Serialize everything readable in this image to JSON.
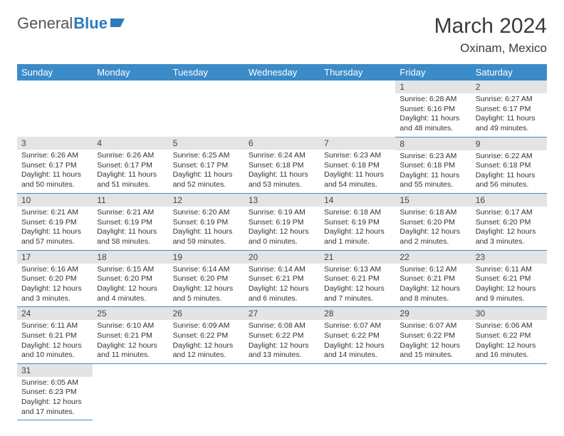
{
  "logo": {
    "text1": "General",
    "text2": "Blue"
  },
  "title": "March 2024",
  "location": "Oxinam, Mexico",
  "colors": {
    "header_bg": "#3b8bc9",
    "header_text": "#ffffff",
    "daynum_bg": "#e4e4e4",
    "border": "#3b8bc9",
    "logo_blue": "#2b7bbf"
  },
  "weekdays": [
    "Sunday",
    "Monday",
    "Tuesday",
    "Wednesday",
    "Thursday",
    "Friday",
    "Saturday"
  ],
  "weeks": [
    [
      null,
      null,
      null,
      null,
      null,
      {
        "n": "1",
        "sunrise": "6:28 AM",
        "sunset": "6:16 PM",
        "daylight": "11 hours and 48 minutes."
      },
      {
        "n": "2",
        "sunrise": "6:27 AM",
        "sunset": "6:17 PM",
        "daylight": "11 hours and 49 minutes."
      }
    ],
    [
      {
        "n": "3",
        "sunrise": "6:26 AM",
        "sunset": "6:17 PM",
        "daylight": "11 hours and 50 minutes."
      },
      {
        "n": "4",
        "sunrise": "6:26 AM",
        "sunset": "6:17 PM",
        "daylight": "11 hours and 51 minutes."
      },
      {
        "n": "5",
        "sunrise": "6:25 AM",
        "sunset": "6:17 PM",
        "daylight": "11 hours and 52 minutes."
      },
      {
        "n": "6",
        "sunrise": "6:24 AM",
        "sunset": "6:18 PM",
        "daylight": "11 hours and 53 minutes."
      },
      {
        "n": "7",
        "sunrise": "6:23 AM",
        "sunset": "6:18 PM",
        "daylight": "11 hours and 54 minutes."
      },
      {
        "n": "8",
        "sunrise": "6:23 AM",
        "sunset": "6:18 PM",
        "daylight": "11 hours and 55 minutes."
      },
      {
        "n": "9",
        "sunrise": "6:22 AM",
        "sunset": "6:18 PM",
        "daylight": "11 hours and 56 minutes."
      }
    ],
    [
      {
        "n": "10",
        "sunrise": "6:21 AM",
        "sunset": "6:19 PM",
        "daylight": "11 hours and 57 minutes."
      },
      {
        "n": "11",
        "sunrise": "6:21 AM",
        "sunset": "6:19 PM",
        "daylight": "11 hours and 58 minutes."
      },
      {
        "n": "12",
        "sunrise": "6:20 AM",
        "sunset": "6:19 PM",
        "daylight": "11 hours and 59 minutes."
      },
      {
        "n": "13",
        "sunrise": "6:19 AM",
        "sunset": "6:19 PM",
        "daylight": "12 hours and 0 minutes."
      },
      {
        "n": "14",
        "sunrise": "6:18 AM",
        "sunset": "6:19 PM",
        "daylight": "12 hours and 1 minute."
      },
      {
        "n": "15",
        "sunrise": "6:18 AM",
        "sunset": "6:20 PM",
        "daylight": "12 hours and 2 minutes."
      },
      {
        "n": "16",
        "sunrise": "6:17 AM",
        "sunset": "6:20 PM",
        "daylight": "12 hours and 3 minutes."
      }
    ],
    [
      {
        "n": "17",
        "sunrise": "6:16 AM",
        "sunset": "6:20 PM",
        "daylight": "12 hours and 3 minutes."
      },
      {
        "n": "18",
        "sunrise": "6:15 AM",
        "sunset": "6:20 PM",
        "daylight": "12 hours and 4 minutes."
      },
      {
        "n": "19",
        "sunrise": "6:14 AM",
        "sunset": "6:20 PM",
        "daylight": "12 hours and 5 minutes."
      },
      {
        "n": "20",
        "sunrise": "6:14 AM",
        "sunset": "6:21 PM",
        "daylight": "12 hours and 6 minutes."
      },
      {
        "n": "21",
        "sunrise": "6:13 AM",
        "sunset": "6:21 PM",
        "daylight": "12 hours and 7 minutes."
      },
      {
        "n": "22",
        "sunrise": "6:12 AM",
        "sunset": "6:21 PM",
        "daylight": "12 hours and 8 minutes."
      },
      {
        "n": "23",
        "sunrise": "6:11 AM",
        "sunset": "6:21 PM",
        "daylight": "12 hours and 9 minutes."
      }
    ],
    [
      {
        "n": "24",
        "sunrise": "6:11 AM",
        "sunset": "6:21 PM",
        "daylight": "12 hours and 10 minutes."
      },
      {
        "n": "25",
        "sunrise": "6:10 AM",
        "sunset": "6:21 PM",
        "daylight": "12 hours and 11 minutes."
      },
      {
        "n": "26",
        "sunrise": "6:09 AM",
        "sunset": "6:22 PM",
        "daylight": "12 hours and 12 minutes."
      },
      {
        "n": "27",
        "sunrise": "6:08 AM",
        "sunset": "6:22 PM",
        "daylight": "12 hours and 13 minutes."
      },
      {
        "n": "28",
        "sunrise": "6:07 AM",
        "sunset": "6:22 PM",
        "daylight": "12 hours and 14 minutes."
      },
      {
        "n": "29",
        "sunrise": "6:07 AM",
        "sunset": "6:22 PM",
        "daylight": "12 hours and 15 minutes."
      },
      {
        "n": "30",
        "sunrise": "6:06 AM",
        "sunset": "6:22 PM",
        "daylight": "12 hours and 16 minutes."
      }
    ],
    [
      {
        "n": "31",
        "sunrise": "6:05 AM",
        "sunset": "6:23 PM",
        "daylight": "12 hours and 17 minutes."
      },
      null,
      null,
      null,
      null,
      null,
      null
    ]
  ],
  "labels": {
    "sunrise": "Sunrise:",
    "sunset": "Sunset:",
    "daylight": "Daylight:"
  }
}
